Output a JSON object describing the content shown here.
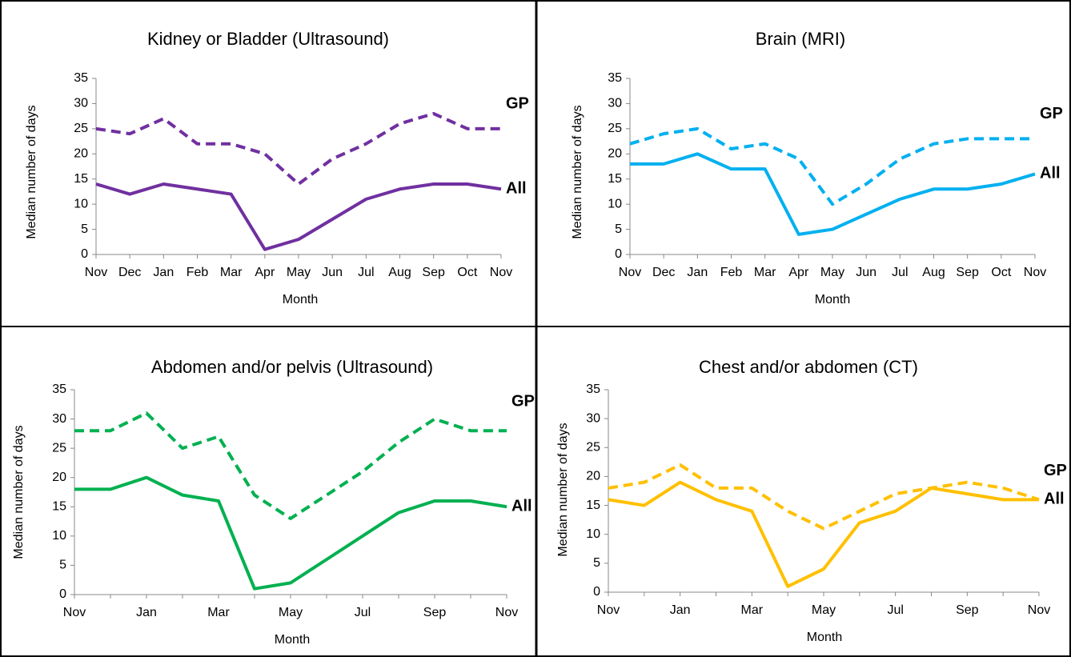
{
  "chart_data": [
    {
      "type": "line",
      "title": "Kidney or Bladder (Ultrasound)",
      "x_label": "Month",
      "y_label": "Median number of days",
      "categories": [
        "Nov",
        "Dec",
        "Jan",
        "Feb",
        "Mar",
        "Apr",
        "May",
        "Jun",
        "Jul",
        "Aug",
        "Sep",
        "Oct",
        "Nov"
      ],
      "ylim": [
        0,
        35
      ],
      "yticks": [
        0,
        5,
        10,
        15,
        20,
        25,
        30,
        35
      ],
      "label_color": "#7b68a8",
      "series": [
        {
          "name": "GP",
          "color": "#7030a0",
          "dashed": true,
          "values": [
            25,
            24,
            27,
            22,
            22,
            20,
            14,
            19,
            22,
            26,
            28,
            25,
            25
          ]
        },
        {
          "name": "All",
          "color": "#7030a0",
          "dashed": false,
          "values": [
            14,
            12,
            14,
            13,
            12,
            1,
            3,
            7,
            11,
            13,
            14,
            14,
            13
          ]
        }
      ]
    },
    {
      "type": "line",
      "title": "Brain (MRI)",
      "x_label": "Month",
      "y_label": "Median number of days",
      "categories": [
        "Nov",
        "Dec",
        "Jan",
        "Feb",
        "Mar",
        "Apr",
        "May",
        "Jun",
        "Jul",
        "Aug",
        "Sep",
        "Oct",
        "Nov"
      ],
      "ylim": [
        0,
        35
      ],
      "yticks": [
        0,
        5,
        10,
        15,
        20,
        25,
        30,
        35
      ],
      "label_color": "#00b0f0",
      "series": [
        {
          "name": "GP",
          "color": "#00b0f0",
          "dashed": true,
          "values": [
            22,
            24,
            25,
            21,
            22,
            19,
            10,
            14,
            19,
            22,
            23,
            23,
            23
          ]
        },
        {
          "name": "All",
          "color": "#00b0f0",
          "dashed": false,
          "values": [
            18,
            18,
            20,
            17,
            17,
            4,
            5,
            8,
            11,
            13,
            13,
            14,
            16
          ]
        }
      ]
    },
    {
      "type": "line",
      "title": "Abdomen and/or pelvis (Ultrasound)",
      "x_label": "Month",
      "y_label": "Median number of days",
      "categories": [
        "Nov",
        null,
        "Jan",
        null,
        "Mar",
        null,
        "May",
        null,
        "Jul",
        null,
        "Sep",
        null,
        "Nov"
      ],
      "ylim": [
        0,
        35
      ],
      "yticks": [
        0,
        5,
        10,
        15,
        20,
        25,
        30,
        35
      ],
      "label_color": "#00b050",
      "series": [
        {
          "name": "GP",
          "color": "#00b050",
          "dashed": true,
          "values": [
            28,
            28,
            31,
            25,
            27,
            17,
            13,
            17,
            21,
            26,
            30,
            28,
            28
          ]
        },
        {
          "name": "All",
          "color": "#00b050",
          "dashed": false,
          "values": [
            18,
            18,
            20,
            17,
            16,
            1,
            2,
            6,
            10,
            14,
            16,
            16,
            15
          ]
        }
      ]
    },
    {
      "type": "line",
      "title": "Chest and/or abdomen (CT)",
      "x_label": "Month",
      "y_label": "Median number of days",
      "categories": [
        "Nov",
        null,
        "Jan",
        null,
        "Mar",
        null,
        "May",
        null,
        "Jul",
        null,
        "Sep",
        null,
        "Nov"
      ],
      "ylim": [
        0,
        35
      ],
      "yticks": [
        0,
        5,
        10,
        15,
        20,
        25,
        30,
        35
      ],
      "label_color": "#ffc000",
      "series": [
        {
          "name": "GP",
          "color": "#ffc000",
          "dashed": true,
          "values": [
            18,
            19,
            22,
            18,
            18,
            14,
            11,
            14,
            17,
            18,
            19,
            18,
            16
          ]
        },
        {
          "name": "All",
          "color": "#ffc000",
          "dashed": false,
          "values": [
            16,
            15,
            19,
            16,
            14,
            1,
            4,
            12,
            14,
            18,
            17,
            16,
            16
          ]
        }
      ]
    }
  ]
}
